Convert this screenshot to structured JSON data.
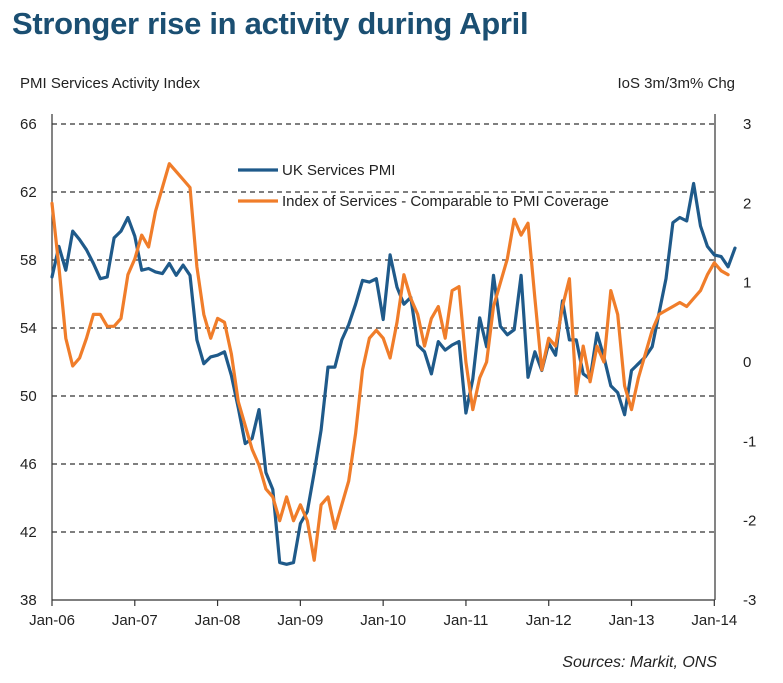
{
  "chart_data": {
    "type": "line",
    "title": "Stronger rise in activity during April",
    "left_axis_title": "PMI Services Activity Index",
    "right_axis_title": "IoS 3m/3m% Chg",
    "source": "Sources: Markit, ONS",
    "y_left": {
      "range": [
        38,
        66
      ],
      "ticks": [
        "38",
        "42",
        "46",
        "50",
        "54",
        "58",
        "62",
        "66"
      ]
    },
    "y_right": {
      "range": [
        -3,
        3
      ],
      "ticks": [
        "-3",
        "-2",
        "-1",
        "0",
        "1",
        "2",
        "3"
      ]
    },
    "x_ticks": [
      "Jan-06",
      "Jan-07",
      "Jan-08",
      "Jan-09",
      "Jan-10",
      "Jan-11",
      "Jan-12",
      "Jan-13",
      "Jan-14"
    ],
    "grid": "horizontal dashed",
    "legend_placement": "top-center",
    "series": [
      {
        "name": "UK Services PMI",
        "axis": "left",
        "color": "#1f5a8a",
        "x": [
          "Jan-06",
          "Feb-06",
          "Mar-06",
          "Apr-06",
          "May-06",
          "Jun-06",
          "Jul-06",
          "Aug-06",
          "Sep-06",
          "Oct-06",
          "Nov-06",
          "Dec-06",
          "Jan-07",
          "Feb-07",
          "Mar-07",
          "Apr-07",
          "May-07",
          "Jun-07",
          "Jul-07",
          "Aug-07",
          "Sep-07",
          "Oct-07",
          "Nov-07",
          "Dec-07",
          "Jan-08",
          "Feb-08",
          "Mar-08",
          "Apr-08",
          "May-08",
          "Jun-08",
          "Jul-08",
          "Aug-08",
          "Sep-08",
          "Oct-08",
          "Nov-08",
          "Dec-08",
          "Jan-09",
          "Feb-09",
          "Mar-09",
          "Apr-09",
          "May-09",
          "Jun-09",
          "Jul-09",
          "Aug-09",
          "Sep-09",
          "Oct-09",
          "Nov-09",
          "Dec-09",
          "Jan-10",
          "Feb-10",
          "Mar-10",
          "Apr-10",
          "May-10",
          "Jun-10",
          "Jul-10",
          "Aug-10",
          "Sep-10",
          "Oct-10",
          "Nov-10",
          "Dec-10",
          "Jan-11",
          "Feb-11",
          "Mar-11",
          "Apr-11",
          "May-11",
          "Jun-11",
          "Jul-11",
          "Aug-11",
          "Sep-11",
          "Oct-11",
          "Nov-11",
          "Dec-11",
          "Jan-12",
          "Feb-12",
          "Mar-12",
          "Apr-12",
          "May-12",
          "Jun-12",
          "Jul-12",
          "Aug-12",
          "Sep-12",
          "Oct-12",
          "Nov-12",
          "Dec-12",
          "Jan-13",
          "Feb-13",
          "Mar-13",
          "Apr-13",
          "May-13",
          "Jun-13",
          "Jul-13",
          "Aug-13",
          "Sep-13",
          "Oct-13",
          "Nov-13",
          "Dec-13",
          "Jan-14",
          "Feb-14",
          "Mar-14",
          "Apr-14"
        ],
        "values": [
          57.0,
          58.8,
          57.4,
          59.7,
          59.2,
          58.6,
          57.8,
          56.9,
          57.0,
          59.3,
          59.7,
          60.5,
          59.4,
          57.4,
          57.5,
          57.3,
          57.2,
          57.8,
          57.1,
          57.7,
          57.1,
          53.3,
          51.9,
          52.3,
          52.4,
          52.6,
          51.2,
          49.3,
          47.2,
          47.5,
          49.2,
          45.5,
          44.5,
          40.2,
          40.1,
          40.2,
          42.5,
          43.2,
          45.5,
          48.0,
          51.7,
          51.7,
          53.3,
          54.2,
          55.4,
          56.8,
          56.7,
          56.9,
          54.5,
          58.3,
          56.4,
          55.4,
          55.8,
          53.0,
          52.6,
          51.3,
          53.2,
          52.7,
          53.0,
          53.2,
          49.0,
          51.0,
          54.6,
          52.9,
          57.1,
          54.1,
          53.6,
          53.9,
          57.1,
          51.1,
          52.6,
          51.5,
          53.1,
          52.4,
          55.6,
          53.3,
          53.3,
          51.3,
          51.0,
          53.7,
          52.3,
          50.6,
          50.2,
          48.9,
          51.5,
          51.9,
          52.3,
          52.9,
          54.9,
          56.9,
          60.2,
          60.5,
          60.3,
          62.5,
          60.0,
          58.8,
          58.3,
          58.2,
          57.6,
          58.7
        ]
      },
      {
        "name": "Index of Services - Comparable to PMI Coverage",
        "axis": "right",
        "color": "#f07d2a",
        "x": [
          "Jan-06",
          "Feb-06",
          "Mar-06",
          "Apr-06",
          "May-06",
          "Jun-06",
          "Jul-06",
          "Aug-06",
          "Sep-06",
          "Oct-06",
          "Nov-06",
          "Dec-06",
          "Jan-07",
          "Feb-07",
          "Mar-07",
          "Apr-07",
          "May-07",
          "Jun-07",
          "Jul-07",
          "Aug-07",
          "Sep-07",
          "Oct-07",
          "Nov-07",
          "Dec-07",
          "Jan-08",
          "Feb-08",
          "Mar-08",
          "Apr-08",
          "May-08",
          "Jun-08",
          "Jul-08",
          "Aug-08",
          "Sep-08",
          "Oct-08",
          "Nov-08",
          "Dec-08",
          "Jan-09",
          "Feb-09",
          "Mar-09",
          "Apr-09",
          "May-09",
          "Jun-09",
          "Jul-09",
          "Aug-09",
          "Sep-09",
          "Oct-09",
          "Nov-09",
          "Dec-09",
          "Jan-10",
          "Feb-10",
          "Mar-10",
          "Apr-10",
          "May-10",
          "Jun-10",
          "Jul-10",
          "Aug-10",
          "Sep-10",
          "Oct-10",
          "Nov-10",
          "Dec-10",
          "Jan-11",
          "Feb-11",
          "Mar-11",
          "Apr-11",
          "May-11",
          "Jun-11",
          "Jul-11",
          "Aug-11",
          "Sep-11",
          "Oct-11",
          "Nov-11",
          "Dec-11",
          "Jan-12",
          "Feb-12",
          "Mar-12",
          "Apr-12",
          "May-12",
          "Jun-12",
          "Jul-12",
          "Aug-12",
          "Sep-12",
          "Oct-12",
          "Nov-12",
          "Dec-12",
          "Jan-13",
          "Feb-13",
          "Mar-13",
          "Apr-13",
          "May-13",
          "Jun-13",
          "Jul-13",
          "Aug-13",
          "Sep-13",
          "Oct-13",
          "Nov-13",
          "Dec-13",
          "Jan-14",
          "Feb-14",
          "Mar-14"
        ],
        "values": [
          2.0,
          1.2,
          0.3,
          -0.05,
          0.05,
          0.3,
          0.6,
          0.6,
          0.45,
          0.45,
          0.55,
          1.1,
          1.3,
          1.6,
          1.45,
          1.9,
          2.2,
          2.5,
          2.4,
          2.3,
          2.2,
          1.2,
          0.6,
          0.3,
          0.55,
          0.5,
          0.1,
          -0.5,
          -0.8,
          -1.1,
          -1.3,
          -1.6,
          -1.7,
          -2.0,
          -1.7,
          -2.0,
          -1.8,
          -2.0,
          -2.5,
          -1.8,
          -1.7,
          -2.1,
          -1.8,
          -1.5,
          -0.9,
          -0.1,
          0.3,
          0.4,
          0.3,
          0.05,
          0.5,
          1.1,
          0.8,
          0.6,
          0.2,
          0.55,
          0.7,
          0.3,
          0.9,
          0.95,
          0.0,
          -0.6,
          -0.2,
          0.0,
          0.7,
          1.0,
          1.3,
          1.8,
          1.6,
          1.75,
          0.8,
          -0.1,
          0.3,
          0.2,
          0.7,
          1.05,
          -0.4,
          0.2,
          -0.25,
          0.2,
          0.0,
          0.9,
          0.6,
          -0.3,
          -0.6,
          -0.2,
          0.1,
          0.4,
          0.6,
          0.65,
          0.7,
          0.75,
          0.7,
          0.8,
          0.9,
          1.1,
          1.25,
          1.15,
          1.1
        ]
      }
    ]
  }
}
